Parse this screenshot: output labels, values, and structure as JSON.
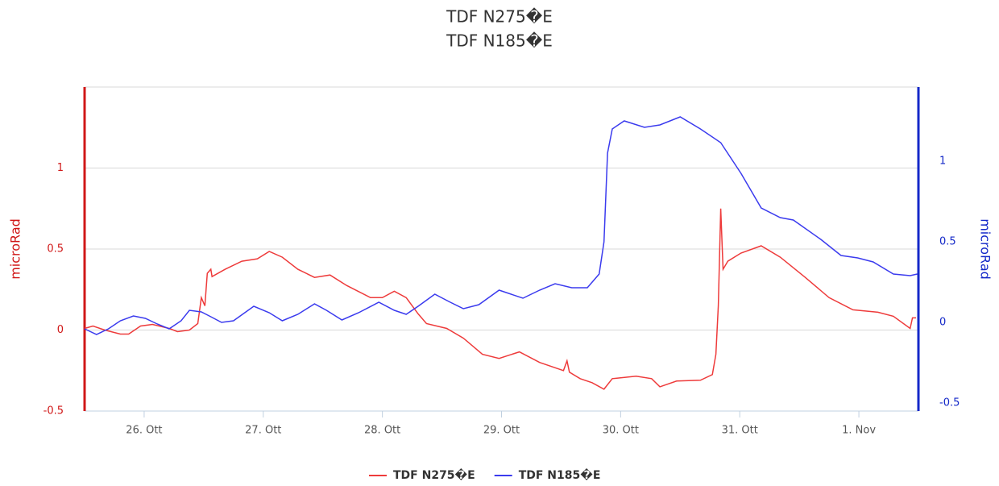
{
  "chart_data": {
    "type": "line",
    "title": [
      "TDF N275�E",
      "TDF N185�E"
    ],
    "y_label": "microRad",
    "y2_label": "microRad",
    "xlim": [
      25.5,
      32.5
    ],
    "xticks": [
      {
        "value": 26,
        "label": "26. Ott"
      },
      {
        "value": 27,
        "label": "27. Ott"
      },
      {
        "value": 28,
        "label": "28. Ott"
      },
      {
        "value": 29,
        "label": "29. Ott"
      },
      {
        "value": 30,
        "label": "30. Ott"
      },
      {
        "value": 31,
        "label": "31. Ott"
      },
      {
        "value": 32,
        "label": "1. Nov"
      }
    ],
    "ylim": [
      -0.5,
      1.5
    ],
    "yticks": [
      -0.5,
      0,
      0.5,
      1
    ],
    "y2lim": [
      -0.55,
      1.46
    ],
    "y2ticks": [
      -0.5,
      0,
      0.5,
      1
    ],
    "grid": true,
    "legend": "bottom",
    "y_color": "#d01818",
    "y2_color": "#1428c8",
    "series": [
      {
        "name": "TDF N275�E",
        "color": "#ee3b3b",
        "x": [
          25.5,
          25.57,
          25.67,
          25.8,
          25.87,
          25.97,
          26.07,
          26.21,
          26.28,
          26.38,
          26.45,
          26.48,
          26.51,
          26.53,
          26.56,
          26.57,
          26.68,
          26.82,
          26.95,
          27.05,
          27.16,
          27.29,
          27.43,
          27.56,
          27.7,
          27.9,
          28.0,
          28.1,
          28.2,
          28.3,
          28.37,
          28.54,
          28.68,
          28.84,
          28.98,
          29.15,
          29.32,
          29.52,
          29.55,
          29.57,
          29.66,
          29.76,
          29.86,
          29.93,
          30.13,
          30.26,
          30.33,
          30.47,
          30.67,
          30.77,
          30.8,
          30.82,
          30.84,
          30.86,
          30.9,
          31.01,
          31.18,
          31.34,
          31.55,
          31.75,
          31.95,
          32.16,
          32.29,
          32.43,
          32.45,
          32.48
        ],
        "values": [
          0.01,
          0.025,
          0,
          -0.025,
          -0.025,
          0.025,
          0.035,
          0.01,
          -0.01,
          0,
          0.04,
          0.2,
          0.15,
          0.35,
          0.375,
          0.33,
          0.375,
          0.425,
          0.44,
          0.485,
          0.45,
          0.375,
          0.325,
          0.34,
          0.275,
          0.2,
          0.2,
          0.24,
          0.2,
          0.1,
          0.04,
          0.01,
          -0.05,
          -0.15,
          -0.175,
          -0.135,
          -0.2,
          -0.25,
          -0.19,
          -0.26,
          -0.3,
          -0.325,
          -0.365,
          -0.3,
          -0.285,
          -0.3,
          -0.35,
          -0.315,
          -0.31,
          -0.275,
          -0.15,
          0.15,
          0.75,
          0.375,
          0.425,
          0.475,
          0.52,
          0.45,
          0.325,
          0.2,
          0.125,
          0.11,
          0.085,
          0.01,
          0.075,
          0.075
        ]
      },
      {
        "name": "TDF N185�E",
        "color": "#3b3bee",
        "axis": "y2",
        "x": [
          25.5,
          25.6,
          25.7,
          25.8,
          25.91,
          26.01,
          26.11,
          26.21,
          26.31,
          26.38,
          26.48,
          26.56,
          26.65,
          26.75,
          26.92,
          27.05,
          27.16,
          27.29,
          27.43,
          27.53,
          27.66,
          27.8,
          27.97,
          28.1,
          28.2,
          28.3,
          28.44,
          28.57,
          28.68,
          28.81,
          28.98,
          29.18,
          29.32,
          29.45,
          29.59,
          29.72,
          29.82,
          29.86,
          29.89,
          29.93,
          30.03,
          30.2,
          30.33,
          30.5,
          30.67,
          30.84,
          31.01,
          31.18,
          31.34,
          31.45,
          31.68,
          31.85,
          31.99,
          32.12,
          32.29,
          32.43,
          32.49
        ],
        "values": [
          -0.04,
          -0.075,
          -0.04,
          0.01,
          0.04,
          0.025,
          -0.01,
          -0.04,
          0.01,
          0.075,
          0.065,
          0.035,
          0,
          0.01,
          0.1,
          0.06,
          0.01,
          0.05,
          0.115,
          0.075,
          0.015,
          0.06,
          0.125,
          0.075,
          0.05,
          0.1,
          0.175,
          0.125,
          0.085,
          0.11,
          0.2,
          0.15,
          0.2,
          0.24,
          0.215,
          0.215,
          0.3,
          0.5,
          1.05,
          1.2,
          1.25,
          1.21,
          1.225,
          1.275,
          1.2,
          1.115,
          0.925,
          0.71,
          0.65,
          0.635,
          0.515,
          0.415,
          0.4,
          0.375,
          0.3,
          0.29,
          0.3
        ]
      }
    ]
  }
}
